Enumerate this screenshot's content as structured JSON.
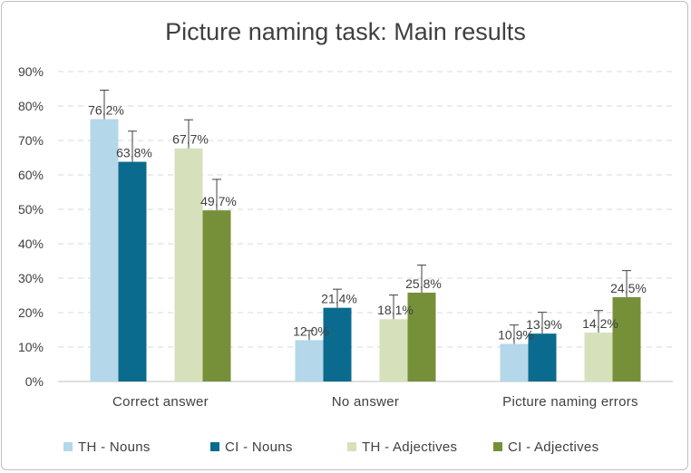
{
  "chart_data": {
    "type": "bar",
    "title": "Picture naming task: Main results",
    "categories": [
      "Correct answer",
      "No answer",
      "Picture naming errors"
    ],
    "y_ticks": [
      "0%",
      "10%",
      "20%",
      "30%",
      "40%",
      "50%",
      "60%",
      "70%",
      "80%",
      "90%"
    ],
    "ylim": [
      0,
      90
    ],
    "grid": true,
    "legend_position": "bottom",
    "series": [
      {
        "name": "TH - Nouns",
        "color": "#b4d7ea",
        "values": [
          76.2,
          12.0,
          10.9
        ],
        "labels": [
          "76,2%",
          "12,0%",
          "10,9%"
        ],
        "error": [
          8.4,
          2.8,
          5.5
        ]
      },
      {
        "name": "CI - Nouns",
        "color": "#0b6b8e",
        "values": [
          63.8,
          21.4,
          13.9
        ],
        "labels": [
          "63,8%",
          "21,4%",
          "13,9%"
        ],
        "error": [
          8.9,
          5.4,
          6.2
        ]
      },
      {
        "name": "TH - Adjectives",
        "color": "#d6e1bb",
        "values": [
          67.7,
          18.1,
          14.2
        ],
        "labels": [
          "67,7%",
          "18,1%",
          "14,2%"
        ],
        "error": [
          8.3,
          7.0,
          6.4
        ]
      },
      {
        "name": "CI - Adjectives",
        "color": "#76903a",
        "values": [
          49.7,
          25.8,
          24.5
        ],
        "labels": [
          "49,7%",
          "25,8%",
          "24,5%"
        ],
        "error": [
          9.0,
          8.0,
          7.7
        ]
      }
    ]
  }
}
